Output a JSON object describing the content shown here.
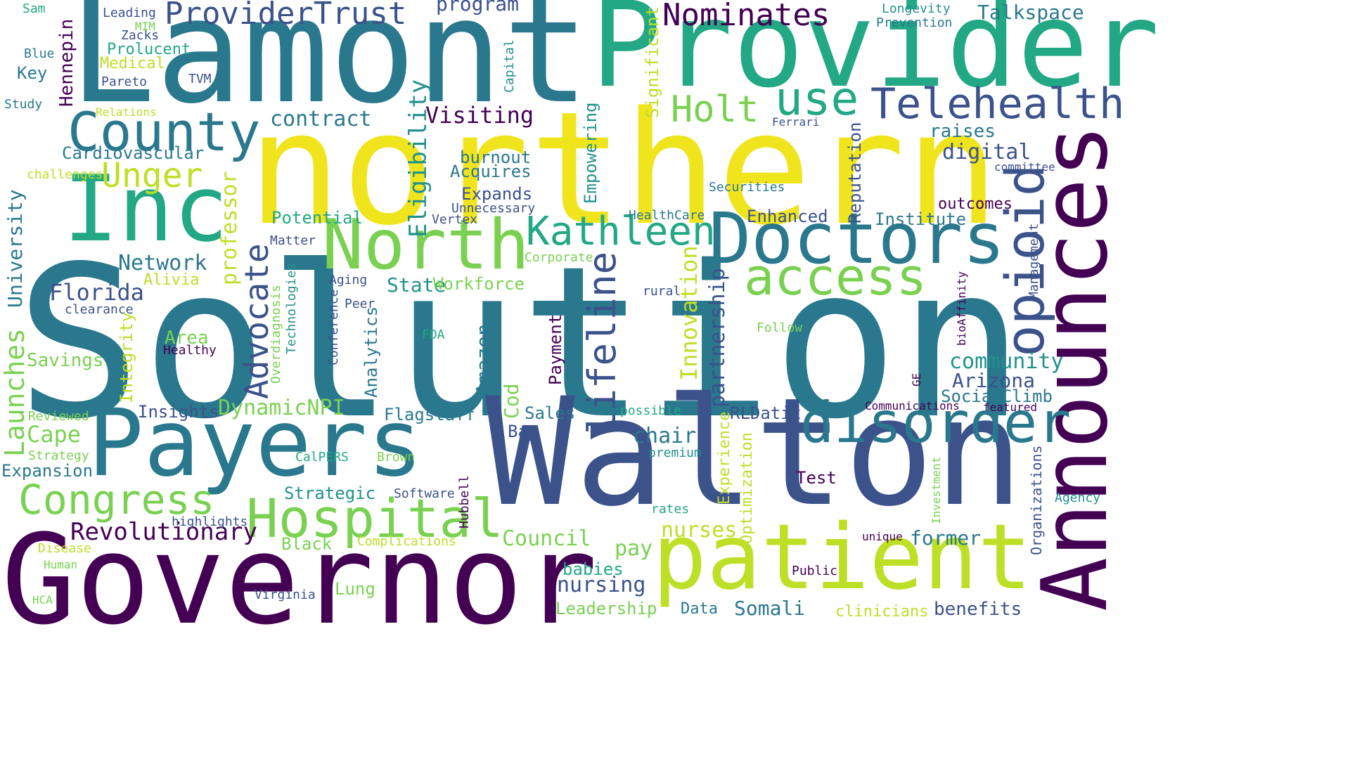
{
  "palette": {
    "dark_purple": "#440154",
    "indigo": "#3b528b",
    "teal_blue": "#2a788e",
    "teal": "#21918c",
    "green": "#22a884",
    "light_green": "#7ad151",
    "yellow_green": "#bddf26",
    "yellow": "#f0e51d"
  },
  "words": [
    "Solution",
    "Lamont",
    "northern",
    "Provider",
    "Walton",
    "Governor",
    "Payers",
    "Announces",
    "Inc",
    "Doctors",
    "North",
    "patient",
    "County",
    "disorder",
    "Hospital",
    "access",
    "opioid",
    "Telehealth",
    "Kathleen",
    "use",
    "Holt",
    "Congress",
    "ProviderTrust",
    "Nominates",
    "Advocate",
    "lifeline",
    "Unger",
    "Revolutionary",
    "Florida",
    "Network",
    "Launches",
    "Cape",
    "Expansion",
    "Cardiovascular",
    "contract",
    "Visiting",
    "burnout",
    "Acquires",
    "Expands",
    "Unnecessary",
    "Vertex",
    "Potential",
    "State",
    "Workforce",
    "Eligibility",
    "Empowering",
    "Significant",
    "Innovation",
    "partnership",
    "Reputation",
    "Enhanced",
    "Institute",
    "outcomes",
    "committee",
    "digital",
    "raises",
    "Securities",
    "HealthCare",
    "Talkspace",
    "Longevity",
    "Prevention",
    "program",
    "Leading",
    "Zacks",
    "MIM",
    "Prolucent",
    "Medical",
    "Pareto",
    "TVM",
    "Hennepin",
    "Capital",
    "Sam",
    "Blue",
    "Key",
    "Study",
    "Relations",
    "challenges",
    "University",
    "professor",
    "Alivia",
    "clearance",
    "Matter",
    "Aging",
    "Peer",
    "Conference",
    "Analytics",
    "Area",
    "Healthy",
    "Savings",
    "Integrity",
    "Overdiagnosis",
    "Technologies",
    "FDA",
    "Amazon",
    "Cod",
    "Payment",
    "DynamicNPI",
    "Insights",
    "Flagstaff",
    "Sales",
    "Bay",
    "Reviewed",
    "Strategy",
    "CalPERS",
    "Brown",
    "Strategic",
    "Software",
    "Hubbell",
    "highlights",
    "Black",
    "Complications",
    "Council",
    "Disease",
    "Human",
    "HCA",
    "Virginia",
    "Lung",
    "babies",
    "nursing",
    "Leadership",
    "pay",
    "nurses",
    "Data",
    "Somali",
    "clinicians",
    "benefits",
    "former",
    "unique",
    "Public",
    "Test",
    "rates",
    "premium",
    "chair",
    "Experience",
    "Optimization",
    "possible",
    "RLDatix",
    "Communications",
    "featured",
    "SocialClimb",
    "Arizona",
    "community",
    "GE",
    "bioAffinity",
    "Management",
    "Organizations",
    "Investment",
    "Agency",
    "Follow",
    "rural",
    "Corporate",
    "Ferrari"
  ]
}
